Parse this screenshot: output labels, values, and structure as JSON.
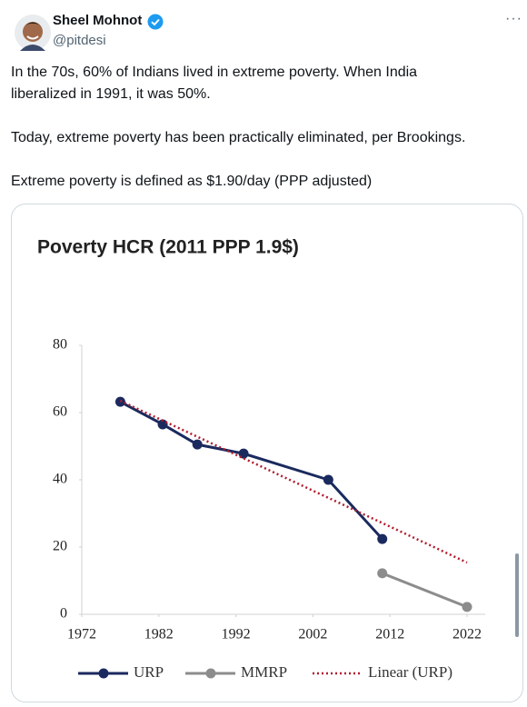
{
  "tweet": {
    "author": "Sheel Mohnot",
    "handle": "@pitdesi",
    "more": "···",
    "paragraphs": [
      "In the 70s, 60% of Indians lived in extreme poverty. When India liberalized in 1991, it was 50%.",
      "Today, extreme poverty has been practically eliminated, per Brookings.",
      "Extreme poverty is defined as $1.90/day (PPP adjusted)"
    ]
  },
  "chart_data": {
    "type": "line",
    "title": "Poverty HCR (2011 PPP 1.9$)",
    "xlim": [
      1972,
      2022
    ],
    "xticks": [
      1972,
      1982,
      1992,
      2002,
      2012,
      2022
    ],
    "ylim": [
      0,
      80
    ],
    "yticks": [
      0,
      20,
      40,
      60,
      80
    ],
    "grid": false,
    "legend": "bottom",
    "series": [
      {
        "name": "URP",
        "color": "#1b2a5e",
        "style": "solid",
        "marker": true,
        "x": [
          1977,
          1982.5,
          1987,
          1993,
          2004,
          2011
        ],
        "values": [
          63.2,
          56.5,
          50.5,
          47.8,
          40.0,
          22.4
        ]
      },
      {
        "name": "MMRP",
        "color": "#8c8c8c",
        "style": "solid",
        "marker": true,
        "x": [
          2011,
          2022
        ],
        "values": [
          12.2,
          2.2
        ]
      },
      {
        "name": "Linear (URP)",
        "color": "#b01c2e",
        "style": "dotted",
        "marker": false,
        "x": [
          1977,
          2022
        ],
        "values": [
          63.5,
          15.4
        ]
      }
    ]
  }
}
